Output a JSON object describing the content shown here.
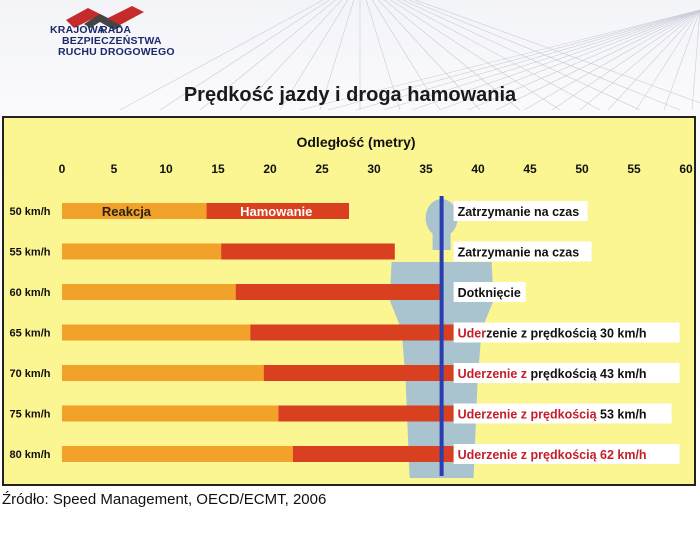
{
  "logo": {
    "line1": "KRAJOWA",
    "line1b": "RADA",
    "line2": "BEZPIECZEŃSTWA",
    "line3": "RUCHU DROGOWEGO"
  },
  "title": "Prędkość jazdy i droga hamowania",
  "source": "Źródło: Speed Management, OECD/ECMT, 2006",
  "colors": {
    "reaction": "#f2a12a",
    "braking": "#d8401f",
    "background": "#fbf592",
    "stop_line": "#2b3cb0",
    "highlight": "#c31f2a"
  },
  "chart_data": {
    "type": "bar",
    "orientation": "horizontal",
    "stacked": true,
    "xlabel": "Odległość (metry)",
    "xlim": [
      0,
      60
    ],
    "xticks": [
      0,
      5,
      10,
      15,
      20,
      25,
      30,
      35,
      40,
      45,
      50,
      55,
      60
    ],
    "categories": [
      "50 km/h",
      "55 km/h",
      "60 km/h",
      "65 km/h",
      "70 km/h",
      "75 km/h",
      "80 km/h"
    ],
    "series": [
      {
        "name": "Reakcja",
        "values": [
          13.9,
          15.3,
          16.7,
          18.1,
          19.4,
          20.8,
          22.2
        ]
      },
      {
        "name": "Hamowanie",
        "values": [
          13.7,
          16.7,
          19.8,
          23.2,
          26.9,
          30.9,
          35.1
        ]
      }
    ],
    "stop_line_x": 36.5,
    "annotations": [
      {
        "pre": "",
        "red": "",
        "post": "Zatrzymanie na czas"
      },
      {
        "pre": "",
        "red": "",
        "post": "Zatrzymanie na czas"
      },
      {
        "pre": "",
        "red": "",
        "post": "Dotknięcie"
      },
      {
        "pre": "",
        "red": "Uder",
        "post": "zenie z prędkością 30 km/h"
      },
      {
        "pre": "",
        "red": "Uderzenie z ",
        "post": "prędkością 43 km/h"
      },
      {
        "pre": "",
        "red": "Uderzenie z prędkością ",
        "post": "53 km/h"
      },
      {
        "pre": "",
        "red": "Uderzenie z prędkością 62 km/h",
        "post": ""
      }
    ]
  }
}
